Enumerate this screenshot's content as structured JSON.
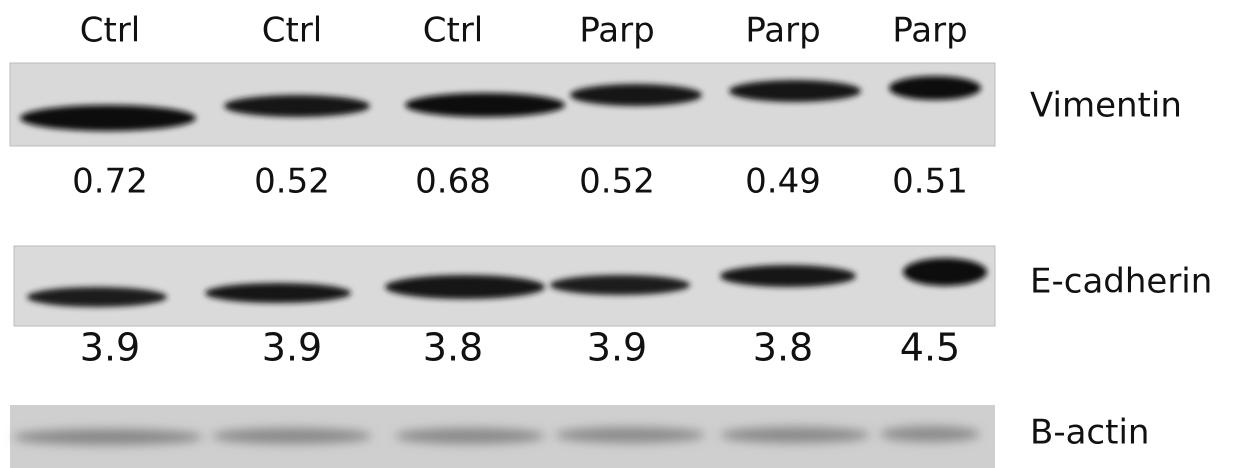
{
  "lanes": [
    "Ctrl",
    "Ctrl",
    "Ctrl",
    "Parp",
    "Parp",
    "Parp"
  ],
  "blots": [
    {
      "name": "Vimentin",
      "values": [
        "0.72",
        "0.52",
        "0.68",
        "0.52",
        "0.49",
        "0.51"
      ]
    },
    {
      "name": "E-cadherin",
      "values": [
        "3.9",
        "3.9",
        "3.8",
        "3.9",
        "3.8",
        "4.5"
      ]
    },
    {
      "name": "B-actin"
    }
  ]
}
